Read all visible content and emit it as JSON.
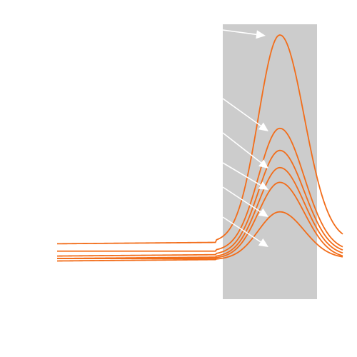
{
  "chart_data": {
    "type": "line",
    "title": "",
    "xlabel": "",
    "ylabel": "",
    "grid": false,
    "legend": "none",
    "highlight_band": {
      "x_start": 0.58,
      "x_end": 0.91
    },
    "x_range": [
      0,
      1
    ],
    "y_range": [
      0,
      1
    ],
    "series": [
      {
        "baseline_left": 0.15,
        "baseline_right": 0.16,
        "peak": 1.0
      },
      {
        "baseline_left": 0.12,
        "baseline_right": 0.12,
        "peak": 0.62
      },
      {
        "baseline_left": 0.1,
        "baseline_right": 0.11,
        "peak": 0.53
      },
      {
        "baseline_left": 0.09,
        "baseline_right": 0.1,
        "peak": 0.46
      },
      {
        "baseline_left": 0.09,
        "baseline_right": 0.09,
        "peak": 0.4
      },
      {
        "baseline_left": 0.08,
        "baseline_right": 0.09,
        "peak": 0.28
      }
    ],
    "peak_x": 0.78,
    "colors": {
      "line": "#f26d1a",
      "band": "#cccccc",
      "arrow": "#ffffff",
      "background": "#ffffff"
    }
  }
}
